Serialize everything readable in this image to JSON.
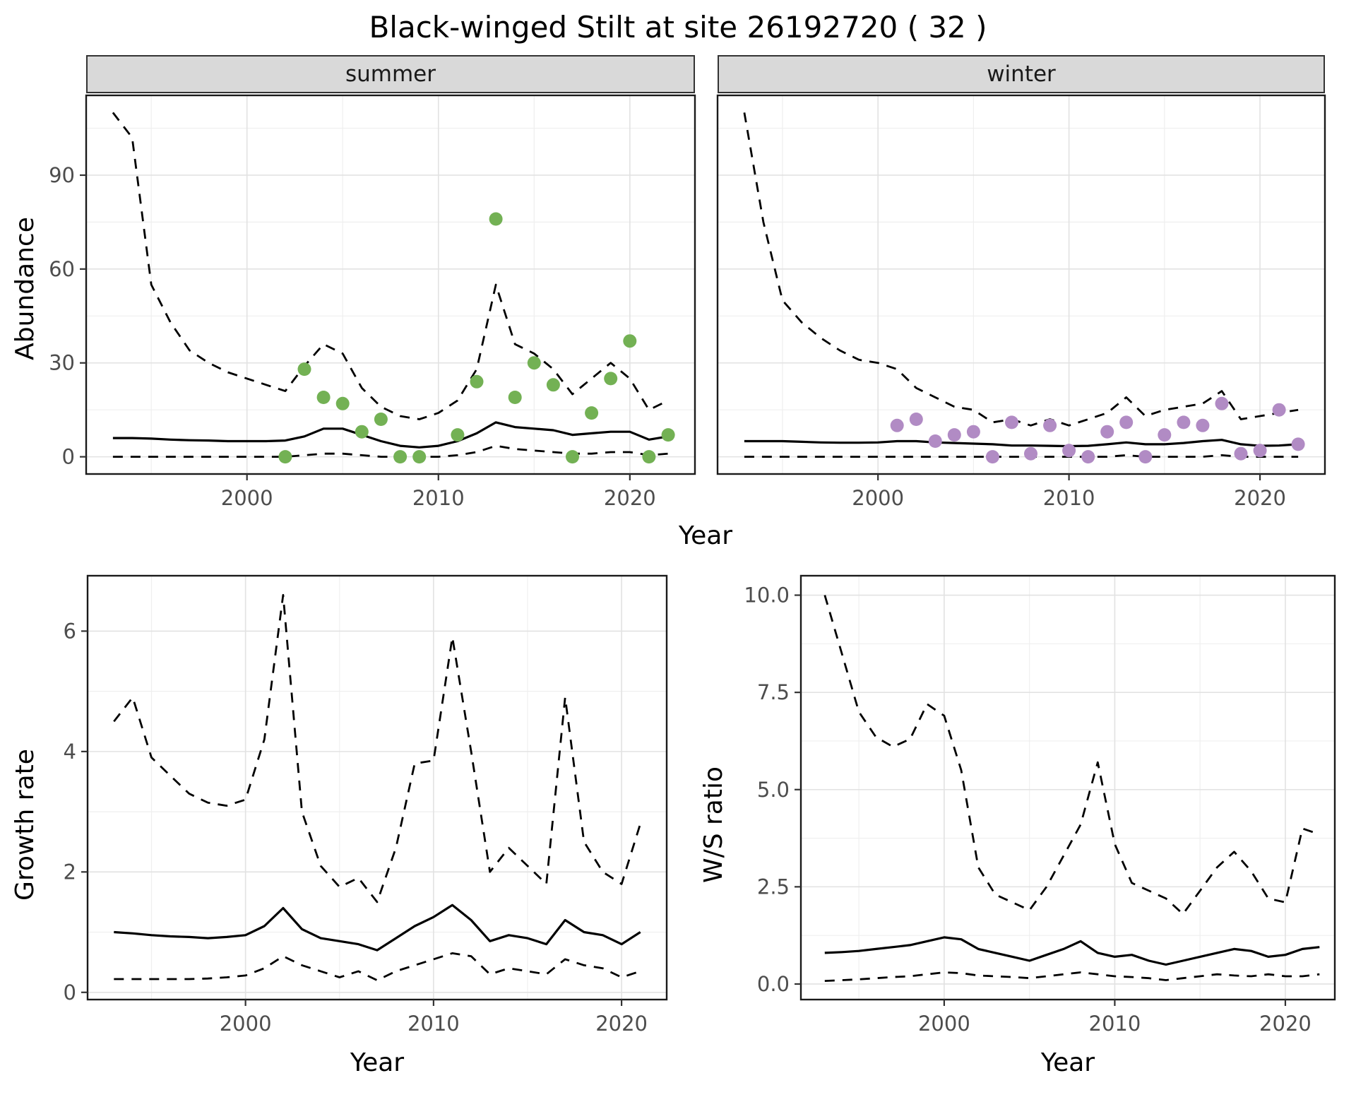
{
  "title": "Black-winged Stilt at site 26192720 ( 32 )",
  "facet_labels": {
    "summer": "summer",
    "winter": "winter"
  },
  "labels": {
    "abundance": "Abundance",
    "year": "Year",
    "growth_rate": "Growth rate",
    "ws_ratio": "W/S ratio"
  },
  "colors": {
    "summer_points": "#73b154",
    "winter_points": "#b18bc4",
    "lines": "#000000",
    "strip_background": "#d9d9d9",
    "grid_major": "#e2e2e2",
    "grid_minor": "#efefef"
  },
  "chart_data": [
    {
      "id": "summer",
      "type": "line",
      "facet": "summer",
      "xlabel": "Year",
      "ylabel": "Abundance",
      "xlim": [
        1991.6,
        2023.4
      ],
      "ylim": [
        -5.5,
        115.5
      ],
      "xticks": [
        2000,
        2010,
        2020
      ],
      "yticks": [
        0,
        30,
        60,
        90
      ],
      "minor_x": [
        1995,
        2005,
        2015
      ],
      "minor_y": [
        15,
        45,
        75,
        105
      ],
      "x": [
        1993,
        1994,
        1995,
        1996,
        1997,
        1998,
        1999,
        2000,
        2001,
        2002,
        2003,
        2004,
        2005,
        2006,
        2007,
        2008,
        2009,
        2010,
        2011,
        2012,
        2013,
        2014,
        2015,
        2016,
        2017,
        2018,
        2019,
        2020,
        2021,
        2022
      ],
      "series": [
        {
          "name": "upper-ci",
          "style": "dashed",
          "values": [
            110,
            102,
            55,
            43,
            34,
            30,
            27,
            25,
            23,
            21,
            29,
            36,
            33,
            22,
            16,
            13,
            12,
            14,
            18,
            28,
            55,
            36,
            33,
            28,
            20,
            25,
            30,
            25,
            15,
            18
          ]
        },
        {
          "name": "median",
          "style": "solid",
          "values": [
            6,
            6,
            5.8,
            5.5,
            5.3,
            5.2,
            5,
            5,
            5,
            5.2,
            6.5,
            9,
            9,
            7,
            5,
            3.5,
            3,
            3.5,
            5,
            7.5,
            11,
            9.5,
            9,
            8.5,
            7,
            7.5,
            8,
            8,
            5.5,
            6.5
          ]
        },
        {
          "name": "lower-ci",
          "style": "dashed",
          "values": [
            0,
            0,
            0,
            0,
            0,
            0,
            0,
            0,
            0,
            0,
            0.5,
            1,
            1,
            0.5,
            0,
            0,
            0,
            0,
            0.5,
            1.5,
            3.5,
            2.5,
            2,
            1.5,
            1,
            1,
            1.5,
            1.5,
            0.5,
            1
          ]
        }
      ],
      "points": {
        "name": "observed-counts",
        "color": "#73b154",
        "x": [
          2002,
          2003,
          2004,
          2005,
          2006,
          2007,
          2008,
          2009,
          2011,
          2012,
          2013,
          2014,
          2015,
          2016,
          2017,
          2018,
          2019,
          2020,
          2021,
          2022
        ],
        "y": [
          0,
          28,
          19,
          17,
          8,
          12,
          0,
          0,
          7,
          24,
          76,
          19,
          30,
          23,
          0,
          14,
          25,
          37,
          0,
          7
        ]
      }
    },
    {
      "id": "winter",
      "type": "line",
      "facet": "winter",
      "xlabel": "Year",
      "ylabel": "Abundance",
      "xlim": [
        1991.6,
        2023.4
      ],
      "ylim": [
        -5.5,
        115.5
      ],
      "xticks": [
        2000,
        2010,
        2020
      ],
      "yticks": [
        0,
        30,
        60,
        90
      ],
      "minor_x": [
        1995,
        2005,
        2015
      ],
      "minor_y": [
        15,
        45,
        75,
        105
      ],
      "x": [
        1993,
        1994,
        1995,
        1996,
        1997,
        1998,
        1999,
        2000,
        2001,
        2002,
        2003,
        2004,
        2005,
        2006,
        2007,
        2008,
        2009,
        2010,
        2011,
        2012,
        2013,
        2014,
        2015,
        2016,
        2017,
        2018,
        2019,
        2020,
        2021,
        2022
      ],
      "series": [
        {
          "name": "upper-ci",
          "style": "dashed",
          "values": [
            110,
            75,
            50,
            43,
            38,
            34,
            31,
            30,
            28,
            22,
            19,
            16,
            15,
            11,
            12,
            10,
            12,
            10,
            12,
            14,
            19,
            13,
            15,
            16,
            17,
            21,
            12,
            13,
            14,
            15
          ]
        },
        {
          "name": "median",
          "style": "solid",
          "values": [
            5,
            5,
            5,
            4.8,
            4.6,
            4.5,
            4.5,
            4.6,
            5,
            5,
            4.6,
            4.4,
            4.2,
            4,
            3.6,
            3.6,
            3.5,
            3.4,
            3.5,
            4,
            4.6,
            4,
            4,
            4.4,
            5,
            5.4,
            4,
            3.5,
            3.6,
            4
          ]
        },
        {
          "name": "lower-ci",
          "style": "dashed",
          "values": [
            0,
            0,
            0,
            0,
            0,
            0,
            0,
            0,
            0,
            0,
            0,
            0,
            0,
            0,
            0,
            0,
            0,
            0,
            0,
            0,
            0.5,
            0,
            0,
            0,
            0,
            0.5,
            0,
            0,
            0,
            0
          ]
        }
      ],
      "points": {
        "name": "observed-counts",
        "color": "#b18bc4",
        "x": [
          2001,
          2002,
          2003,
          2004,
          2005,
          2006,
          2007,
          2008,
          2009,
          2010,
          2011,
          2012,
          2013,
          2014,
          2015,
          2016,
          2017,
          2018,
          2019,
          2020,
          2021,
          2022
        ],
        "y": [
          10,
          12,
          5,
          7,
          8,
          0,
          11,
          1,
          10,
          2,
          0,
          8,
          11,
          0,
          7,
          11,
          10,
          17,
          1,
          2,
          15,
          4
        ]
      }
    },
    {
      "id": "growth",
      "type": "line",
      "xlabel": "Year",
      "ylabel": "Growth rate",
      "xlim": [
        1991.6,
        2022.4
      ],
      "ylim": [
        -0.12,
        6.92
      ],
      "xticks": [
        2000,
        2010,
        2020
      ],
      "yticks": [
        0,
        2,
        4,
        6
      ],
      "minor_x": [
        1995,
        2005,
        2015
      ],
      "minor_y": [
        1,
        3,
        5
      ],
      "x": [
        1993,
        1994,
        1995,
        1996,
        1997,
        1998,
        1999,
        2000,
        2001,
        2002,
        2003,
        2004,
        2005,
        2006,
        2007,
        2008,
        2009,
        2010,
        2011,
        2012,
        2013,
        2014,
        2015,
        2016,
        2017,
        2018,
        2019,
        2020,
        2021
      ],
      "series": [
        {
          "name": "upper-ci",
          "style": "dashed",
          "values": [
            4.5,
            4.9,
            3.9,
            3.6,
            3.3,
            3.15,
            3.1,
            3.2,
            4.2,
            6.6,
            3.0,
            2.1,
            1.75,
            1.9,
            1.5,
            2.4,
            3.8,
            3.85,
            5.9,
            4.0,
            2.0,
            2.4,
            2.1,
            1.8,
            4.9,
            2.5,
            2.0,
            1.8,
            2.8
          ]
        },
        {
          "name": "median",
          "style": "solid",
          "values": [
            1.0,
            0.98,
            0.95,
            0.93,
            0.92,
            0.9,
            0.92,
            0.95,
            1.1,
            1.4,
            1.05,
            0.9,
            0.85,
            0.8,
            0.7,
            0.9,
            1.1,
            1.25,
            1.45,
            1.2,
            0.85,
            0.95,
            0.9,
            0.8,
            1.2,
            1.0,
            0.95,
            0.8,
            1.0
          ]
        },
        {
          "name": "lower-ci",
          "style": "dashed",
          "values": [
            0.22,
            0.22,
            0.22,
            0.22,
            0.22,
            0.23,
            0.25,
            0.28,
            0.4,
            0.6,
            0.45,
            0.35,
            0.25,
            0.35,
            0.2,
            0.35,
            0.45,
            0.55,
            0.65,
            0.6,
            0.3,
            0.4,
            0.35,
            0.3,
            0.55,
            0.45,
            0.4,
            0.25,
            0.35
          ]
        }
      ]
    },
    {
      "id": "ratio",
      "type": "line",
      "xlabel": "Year",
      "ylabel": "W/S ratio",
      "xlim": [
        1991.6,
        2022.9
      ],
      "ylim": [
        -0.4,
        10.5
      ],
      "xticks": [
        2000,
        2010,
        2020
      ],
      "yticks": [
        0,
        2.5,
        5,
        7.5,
        10
      ],
      "y_decimals": 1,
      "minor_x": [
        1995,
        2005,
        2015
      ],
      "minor_y": [
        1.25,
        3.75,
        6.25,
        8.75
      ],
      "x": [
        1993,
        1994,
        1995,
        1996,
        1997,
        1998,
        1999,
        2000,
        2001,
        2002,
        2003,
        2004,
        2005,
        2006,
        2007,
        2008,
        2009,
        2010,
        2011,
        2012,
        2013,
        2014,
        2015,
        2016,
        2017,
        2018,
        2019,
        2020,
        2021,
        2022
      ],
      "series": [
        {
          "name": "upper-ci",
          "style": "dashed",
          "values": [
            10.0,
            8.5,
            7.0,
            6.35,
            6.1,
            6.3,
            7.2,
            6.9,
            5.5,
            3.0,
            2.3,
            2.1,
            1.9,
            2.5,
            3.3,
            4.1,
            5.7,
            3.6,
            2.6,
            2.4,
            2.2,
            1.8,
            2.4,
            3.0,
            3.4,
            2.9,
            2.2,
            2.1,
            4.0,
            3.85
          ]
        },
        {
          "name": "median",
          "style": "solid",
          "values": [
            0.8,
            0.82,
            0.85,
            0.9,
            0.95,
            1.0,
            1.1,
            1.2,
            1.15,
            0.9,
            0.8,
            0.7,
            0.6,
            0.75,
            0.9,
            1.1,
            0.8,
            0.7,
            0.75,
            0.6,
            0.5,
            0.6,
            0.7,
            0.8,
            0.9,
            0.85,
            0.7,
            0.75,
            0.9,
            0.95
          ]
        },
        {
          "name": "lower-ci",
          "style": "dashed",
          "values": [
            0.08,
            0.1,
            0.12,
            0.15,
            0.18,
            0.2,
            0.25,
            0.3,
            0.28,
            0.22,
            0.2,
            0.18,
            0.15,
            0.2,
            0.25,
            0.3,
            0.25,
            0.2,
            0.18,
            0.15,
            0.1,
            0.15,
            0.2,
            0.25,
            0.22,
            0.2,
            0.25,
            0.2,
            0.2,
            0.25
          ]
        }
      ]
    }
  ]
}
